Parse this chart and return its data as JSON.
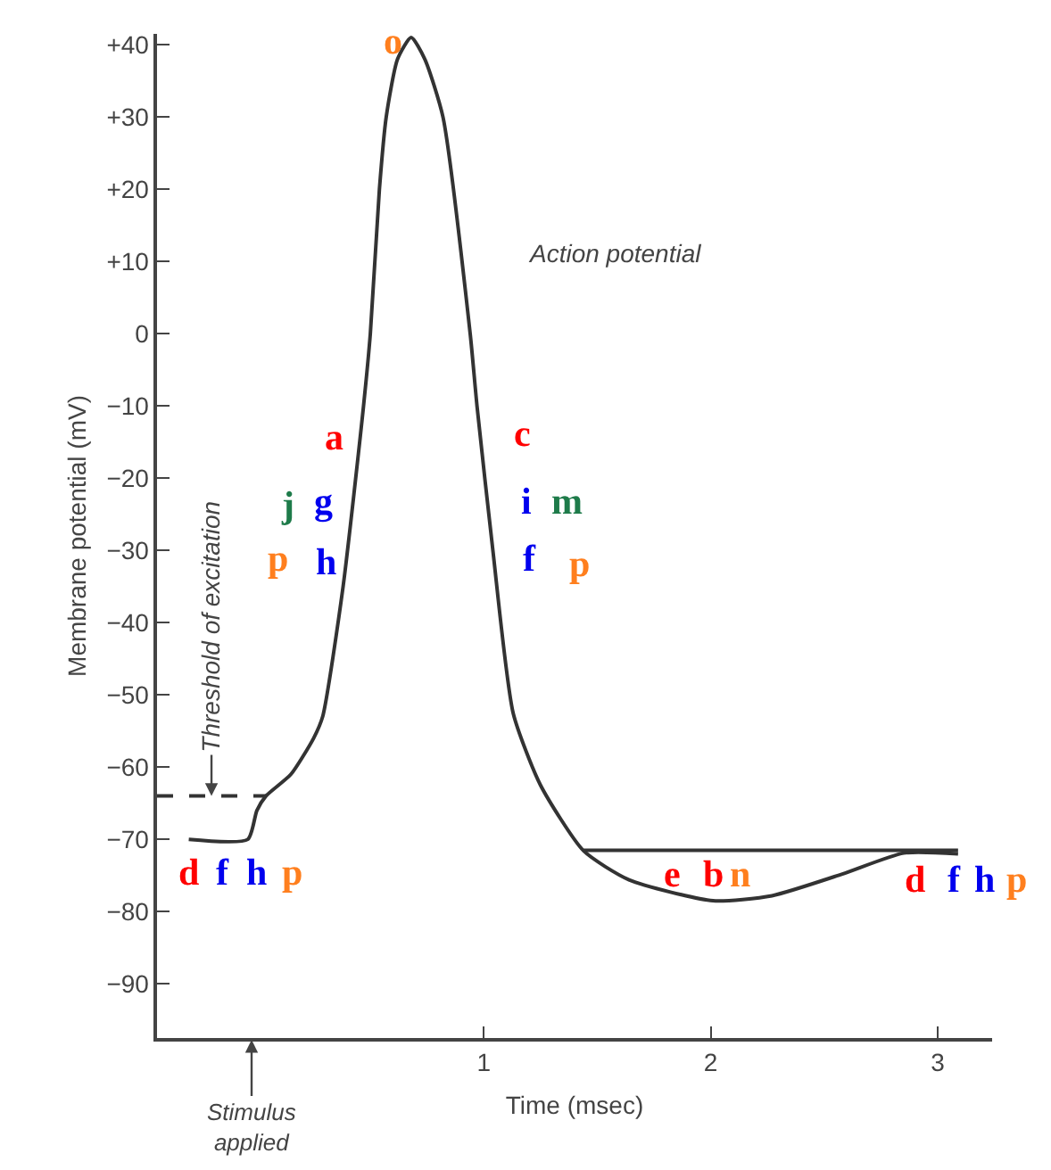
{
  "chart_data": {
    "type": "line",
    "xlabel": "Time (msec)",
    "ylabel": "Membrane potential (mV)",
    "xlim": [
      -0.44,
      3.24
    ],
    "ylim": [
      -97.5,
      41.5
    ],
    "xticks": [
      1,
      2,
      3
    ],
    "yticks": [
      {
        "value": 40,
        "label": "+40"
      },
      {
        "value": 30,
        "label": "+30"
      },
      {
        "value": 20,
        "label": "+20"
      },
      {
        "value": 10,
        "label": "+10"
      },
      0,
      {
        "value": -10,
        "label": "−10"
      },
      {
        "value": -20,
        "label": "−20"
      },
      {
        "value": -30,
        "label": "−30"
      },
      {
        "value": -40,
        "label": "−40"
      },
      {
        "value": -50,
        "label": "−50"
      },
      {
        "value": -60,
        "label": "−60"
      },
      {
        "value": -70,
        "label": "−70"
      },
      {
        "value": -80,
        "label": "−80"
      },
      {
        "value": -90,
        "label": "−90"
      }
    ],
    "marker": "none",
    "series": [
      {
        "color": "#333333",
        "line_style": "solid",
        "x": [
          -0.3,
          -0.04,
          0.0,
          0.04,
          0.15,
          0.25,
          0.29,
          0.38,
          0.47,
          0.5,
          0.54,
          0.57,
          0.62,
          0.68,
          0.74,
          0.82,
          0.94,
          0.97,
          1.04,
          1.13,
          1.25,
          1.44,
          1.64,
          2.01,
          2.27,
          2.58,
          2.85,
          3.09
        ],
        "values": [
          -70,
          -70,
          -66,
          -64,
          -61,
          -56,
          -53,
          -35,
          -10,
          0,
          20,
          30,
          38,
          41,
          38,
          30,
          0,
          -10,
          -30,
          -52.6,
          -62.5,
          -71.6,
          -75.6,
          -78.5,
          -77.8,
          -74.8,
          -71.9,
          -72
        ]
      },
      {
        "color": "#333333",
        "line_style": "solid",
        "x": [
          1.44,
          3.09
        ],
        "values": [
          -71.5,
          -71.5
        ]
      },
      {
        "color": "#333333",
        "line_style": "dashed",
        "x": [
          -0.44,
          0.04
        ],
        "values": [
          -64,
          -64
        ]
      }
    ],
    "annotations": [
      "Action potential",
      {
        "text": "Threshold of excitation",
        "x": -0.2,
        "y": -64
      },
      "Stimulus applied",
      "o",
      "a",
      "c",
      "j",
      "g",
      "p",
      "h",
      "i",
      "m",
      "f",
      "p",
      "d",
      "f",
      "h",
      "p",
      "e",
      "b",
      "n",
      "d",
      "f",
      "h",
      "p"
    ]
  }
}
